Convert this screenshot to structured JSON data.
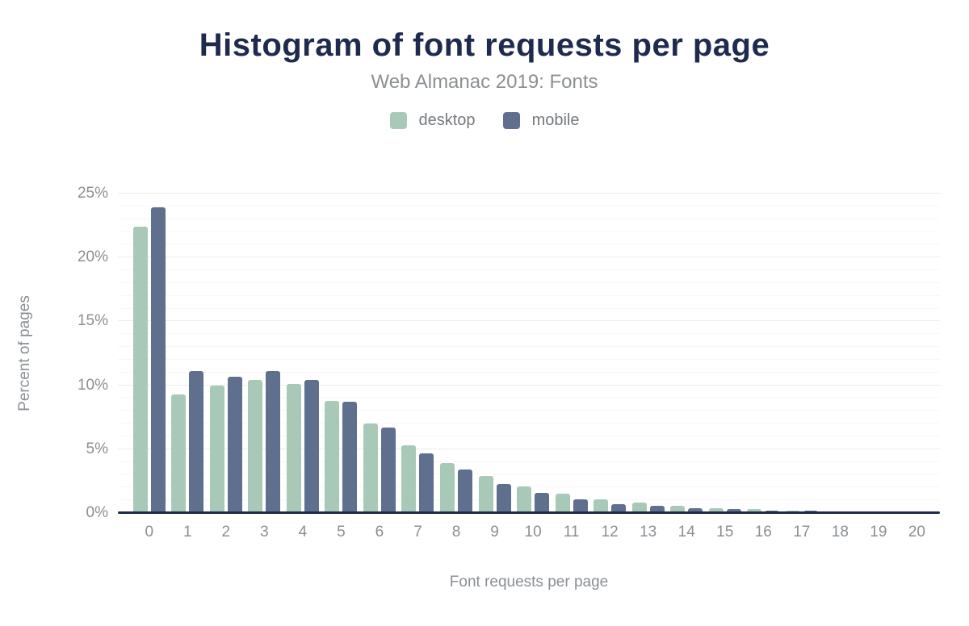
{
  "header": {
    "title": "Histogram of font requests per page",
    "subtitle": "Web Almanac 2019: Fonts"
  },
  "legend": {
    "items": [
      {
        "label": "desktop",
        "color": "#a8c9b8"
      },
      {
        "label": "mobile",
        "color": "#5e708d"
      }
    ]
  },
  "axes": {
    "x_label": "Font requests per page",
    "y_label": "Percent of pages",
    "y_tick_labels": [
      "0%",
      "5%",
      "10%",
      "15%",
      "20%",
      "25%"
    ]
  },
  "colors": {
    "title_text": "#1f2b4e",
    "muted_text": "#8a8f94",
    "axis_line": "#1c2b49",
    "gridline_major": "#ececec",
    "gridline_minor": "#f7f7f7",
    "desktop_bar": "#a8c9b8",
    "mobile_bar": "#5e708d"
  },
  "chart_data": {
    "type": "bar",
    "title": "Histogram of font requests per page",
    "subtitle": "Web Almanac 2019: Fonts",
    "categories": [
      "0",
      "1",
      "2",
      "3",
      "4",
      "5",
      "6",
      "7",
      "8",
      "9",
      "10",
      "11",
      "12",
      "13",
      "14",
      "15",
      "16",
      "17",
      "18",
      "19",
      "20"
    ],
    "series": [
      {
        "name": "desktop",
        "color": "#a8c9b8",
        "values": [
          22.4,
          9.3,
          10.0,
          10.4,
          10.1,
          8.8,
          7.0,
          5.3,
          3.9,
          2.9,
          2.1,
          1.5,
          1.1,
          0.8,
          0.55,
          0.4,
          0.3,
          0.2,
          0.15,
          0.15,
          0.15
        ]
      },
      {
        "name": "mobile",
        "color": "#5e708d",
        "values": [
          23.9,
          11.1,
          10.7,
          11.1,
          10.4,
          8.7,
          6.7,
          4.7,
          3.4,
          2.3,
          1.6,
          1.1,
          0.7,
          0.55,
          0.4,
          0.3,
          0.2,
          0.2,
          0.15,
          0.05,
          0.05
        ]
      }
    ],
    "xlabel": "Font requests per page",
    "ylabel": "Percent of pages",
    "ylim": [
      0,
      25
    ],
    "yticks": [
      0,
      5,
      10,
      15,
      20,
      25
    ],
    "ytick_suffix": "%",
    "grid": "horizontal; minor every 1%, major every 5%",
    "legend_position": "top-center"
  }
}
